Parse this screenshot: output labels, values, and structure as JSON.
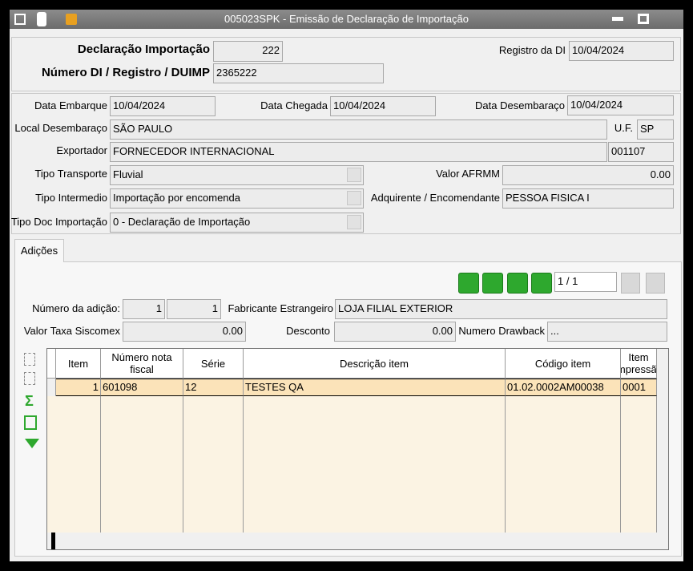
{
  "window": {
    "title": "005023SPK - Emissão de Declaração de Importação"
  },
  "header": {
    "declaracao": {
      "label": "Declaração Importação",
      "value": "222"
    },
    "numero_di": {
      "label": "Número DI / Registro / DUIMP",
      "value": "2365222"
    },
    "registro_di": {
      "label": "Registro da DI",
      "value": "10/04/2024"
    }
  },
  "details": {
    "data_embarque": {
      "label": "Data Embarque",
      "value": "10/04/2024"
    },
    "data_chegada": {
      "label": "Data Chegada",
      "value": "10/04/2024"
    },
    "data_desembaraco": {
      "label": "Data Desembaraço",
      "value": "10/04/2024"
    },
    "local_desembaraco": {
      "label": "Local Desembaraço",
      "value": "SÃO PAULO"
    },
    "uf": {
      "label": "U.F.",
      "value": "SP"
    },
    "exportador": {
      "label": "Exportador",
      "value": "FORNECEDOR INTERNACIONAL",
      "code": "001107"
    },
    "tipo_transporte": {
      "label": "Tipo Transporte",
      "value": "Fluvial"
    },
    "valor_afrmm": {
      "label": "Valor AFRMM",
      "value": "0.00"
    },
    "tipo_intermedio": {
      "label": "Tipo Intermedio",
      "value": "Importação por encomenda"
    },
    "adquirente": {
      "label": "Adquirente / Encomendante",
      "value": "PESSOA FISICA I"
    },
    "tipo_doc": {
      "label": "Tipo Doc Importação",
      "value": "0 - Declaração de Importação"
    }
  },
  "tab": {
    "title": "Adições",
    "navigator": "1 / 1",
    "numero_adicao": {
      "label": "Número da adição:",
      "value1": "1",
      "value2": "1"
    },
    "fabricante": {
      "label": "Fabricante Estrangeiro",
      "value": "LOJA FILIAL EXTERIOR"
    },
    "taxa_siscomex": {
      "label": "Valor Taxa Siscomex",
      "value": "0.00"
    },
    "desconto": {
      "label": "Desconto",
      "value": "0.00"
    },
    "drawback": {
      "label": "Numero Drawback",
      "value": "..."
    }
  },
  "table": {
    "columns": [
      "Item",
      "Número nota fiscal",
      "Série",
      "Descrição item",
      "Código item",
      "Item impressão"
    ],
    "rows": [
      [
        "1",
        "601098",
        "12",
        "TESTES QA",
        "01.02.0002AM00038",
        "0001"
      ]
    ]
  }
}
